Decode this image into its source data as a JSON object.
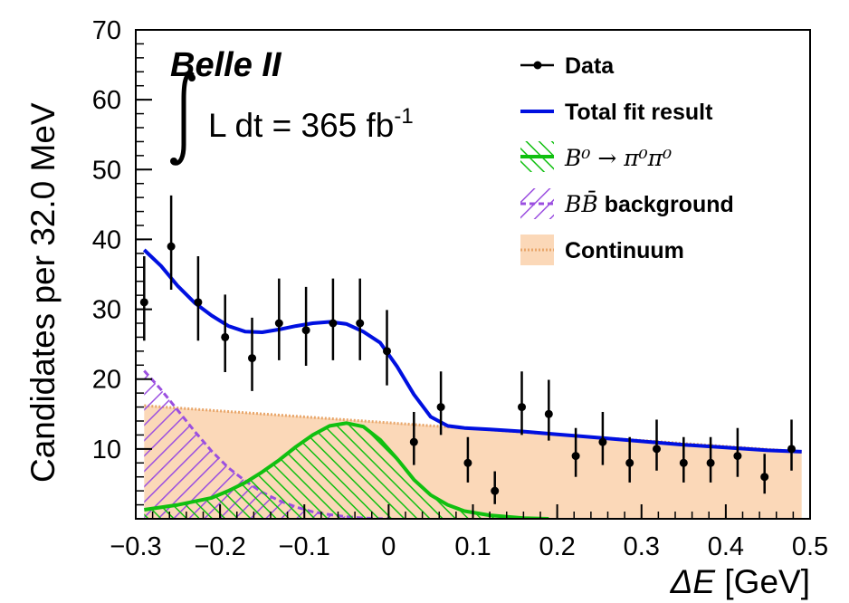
{
  "experiment": "Belle II",
  "luminosity": {
    "prefix": "L dt = 365 fb",
    "sup": "-1"
  },
  "chart_data": {
    "type": "line",
    "xlabel_symbol": "ΔE",
    "xlabel_unit": " [GeV]",
    "ylabel": "Candidates per 32.0 MeV",
    "xlim": [
      -0.3,
      0.5
    ],
    "ylim": [
      0,
      70
    ],
    "xticks": [
      -0.3,
      -0.2,
      -0.1,
      0,
      0.1,
      0.2,
      0.3,
      0.4,
      0.5
    ],
    "xtick_labels": [
      "−0.3",
      "−0.2",
      "−0.1",
      "0",
      "0.1",
      "0.2",
      "0.3",
      "0.4",
      "0.5"
    ],
    "yticks": [
      10,
      20,
      30,
      40,
      50,
      60,
      70
    ],
    "ytick_labels": [
      "10",
      "20",
      "30",
      "40",
      "50",
      "60",
      "70"
    ],
    "data_points": {
      "x": [
        -0.29,
        -0.258,
        -0.226,
        -0.194,
        -0.162,
        -0.13,
        -0.098,
        -0.066,
        -0.034,
        -0.002,
        0.03,
        0.062,
        0.094,
        0.126,
        0.158,
        0.19,
        0.222,
        0.254,
        0.286,
        0.318,
        0.35,
        0.382,
        0.414,
        0.446,
        0.478
      ],
      "y": [
        31,
        39,
        31,
        26,
        23,
        28,
        27,
        28,
        28,
        24,
        11,
        16,
        8,
        4,
        16,
        15,
        9,
        11,
        8,
        10,
        8,
        8,
        9,
        6,
        10
      ],
      "yerr_up": [
        6.6,
        7.3,
        6.6,
        6.1,
        5.8,
        6.4,
        6.2,
        6.4,
        6.4,
        5.9,
        4.3,
        5.1,
        3.7,
        2.8,
        5.1,
        4.9,
        4.0,
        4.3,
        3.7,
        4.2,
        3.7,
        3.7,
        4.0,
        3.3,
        4.2
      ],
      "yerr_down": [
        5.5,
        6.2,
        5.5,
        5.0,
        4.7,
        5.3,
        5.1,
        5.3,
        5.3,
        4.9,
        3.3,
        4.0,
        2.8,
        1.9,
        4.0,
        3.8,
        3.0,
        3.3,
        2.8,
        3.1,
        2.8,
        2.8,
        3.0,
        2.4,
        3.1
      ]
    },
    "total_fit": {
      "x": [
        -0.29,
        -0.27,
        -0.25,
        -0.23,
        -0.21,
        -0.19,
        -0.17,
        -0.15,
        -0.13,
        -0.11,
        -0.09,
        -0.07,
        -0.05,
        -0.03,
        -0.01,
        0.01,
        0.03,
        0.05,
        0.07,
        0.09,
        0.12,
        0.16,
        0.2,
        0.25,
        0.3,
        0.35,
        0.4,
        0.45,
        0.49
      ],
      "y": [
        38.5,
        36.2,
        33.3,
        30.9,
        29.1,
        27.6,
        26.8,
        26.7,
        27.1,
        27.6,
        28.0,
        28.2,
        27.9,
        26.8,
        25.2,
        21.8,
        17.8,
        14.6,
        13.3,
        13.0,
        12.8,
        12.5,
        12.1,
        11.6,
        11.1,
        10.6,
        10.2,
        9.8,
        9.6
      ]
    },
    "continuum": {
      "x": [
        -0.29,
        0.49
      ],
      "y": [
        16.2,
        9.6
      ]
    },
    "signal": {
      "x": [
        -0.29,
        -0.25,
        -0.21,
        -0.19,
        -0.17,
        -0.15,
        -0.13,
        -0.11,
        -0.09,
        -0.07,
        -0.05,
        -0.03,
        -0.01,
        0.01,
        0.03,
        0.05,
        0.07,
        0.09,
        0.12,
        0.16,
        0.19
      ],
      "y": [
        1.3,
        2.0,
        3.0,
        4.0,
        5.2,
        6.7,
        8.4,
        10.3,
        12.0,
        13.3,
        13.7,
        13.2,
        11.3,
        8.6,
        5.6,
        3.4,
        2.0,
        1.1,
        0.5,
        0.1,
        0.0
      ]
    },
    "bb_background": {
      "x": [
        -0.29,
        -0.27,
        -0.25,
        -0.23,
        -0.21,
        -0.19,
        -0.17,
        -0.15,
        -0.13,
        -0.11,
        -0.09,
        -0.07,
        -0.05,
        -0.03,
        0.0
      ],
      "y": [
        21.2,
        18.5,
        15.5,
        12.5,
        9.7,
        7.3,
        5.4,
        3.8,
        2.6,
        1.7,
        1.0,
        0.6,
        0.3,
        0.1,
        0.0
      ]
    },
    "legend_position": "top-right",
    "legend": [
      {
        "label": "Data",
        "math": ""
      },
      {
        "label": "Total fit result",
        "math": ""
      },
      {
        "label": "",
        "math": "B⁰ → π⁰π⁰"
      },
      {
        "label": " background",
        "math": "BB̄"
      },
      {
        "label": "Continuum",
        "math": ""
      }
    ],
    "colors": {
      "data": "#000000",
      "total_fit": "#0010e0",
      "signal": "#10c010",
      "bb_background": "#9b4fe0",
      "continuum_fill": "#fbd8b8",
      "continuum_line": "#e8a66a"
    }
  }
}
